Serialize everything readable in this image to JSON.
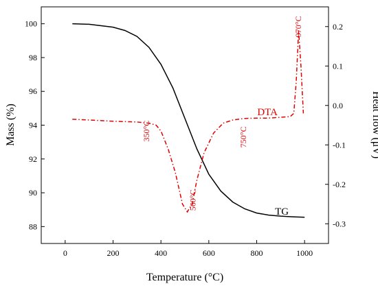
{
  "chart_data": {
    "type": "line",
    "xlabel": "Temperature (°C)",
    "ylabel_left": "Mass (%)",
    "ylabel_right": "Heat flow (μV)",
    "xlim": [
      -100,
      1100
    ],
    "ylim_left": [
      87,
      101
    ],
    "ylim_right": [
      -0.35,
      0.25
    ],
    "x_ticks": [
      0,
      200,
      400,
      600,
      800,
      1000
    ],
    "y_left_ticks": [
      88,
      90,
      92,
      94,
      96,
      98,
      100
    ],
    "y_right_ticks": [
      -0.3,
      -0.2,
      -0.1,
      0.0,
      0.1,
      0.2
    ],
    "y_right_tick_labels": [
      "-0.3",
      "-0.2",
      "-0.1",
      "0.0",
      "0.1",
      "0.2"
    ],
    "grid": false,
    "series": [
      {
        "name": "TG",
        "axis": "left",
        "color": "#000000",
        "style": "solid",
        "x": [
          30,
          100,
          200,
          250,
          300,
          350,
          400,
          450,
          500,
          550,
          600,
          650,
          700,
          750,
          800,
          850,
          900,
          950,
          1000
        ],
        "y": [
          100.0,
          99.97,
          99.8,
          99.6,
          99.25,
          98.6,
          97.6,
          96.2,
          94.4,
          92.6,
          91.1,
          90.1,
          89.45,
          89.05,
          88.8,
          88.68,
          88.62,
          88.58,
          88.55
        ]
      },
      {
        "name": "DTA",
        "axis": "right",
        "color": "#e00000",
        "style": "dashdot",
        "x": [
          30,
          100,
          200,
          300,
          350,
          380,
          400,
          430,
          460,
          490,
          510,
          530,
          550,
          580,
          620,
          660,
          700,
          750,
          800,
          850,
          900,
          940,
          955,
          965,
          975,
          985,
          995
        ],
        "y": [
          -0.035,
          -0.037,
          -0.04,
          -0.042,
          -0.045,
          -0.05,
          -0.065,
          -0.11,
          -0.17,
          -0.25,
          -0.27,
          -0.25,
          -0.19,
          -0.12,
          -0.07,
          -0.045,
          -0.037,
          -0.033,
          -0.032,
          -0.032,
          -0.03,
          -0.028,
          -0.02,
          0.06,
          0.19,
          0.1,
          -0.02
        ]
      }
    ],
    "annotations": [
      {
        "text": "350°C",
        "x": 350,
        "y": -0.065,
        "axis": "right",
        "rotate": -90
      },
      {
        "text": "560°C",
        "x": 545,
        "y": -0.24,
        "axis": "right",
        "rotate": -90
      },
      {
        "text": "750°C",
        "x": 755,
        "y": -0.08,
        "axis": "right",
        "rotate": -90
      },
      {
        "text": "970°C",
        "x": 985,
        "y": 0.2,
        "axis": "right",
        "rotate": -90
      }
    ],
    "series_labels": [
      {
        "text": "DTA",
        "series": "DTA",
        "x": 845,
        "y": -0.025
      },
      {
        "text": "TG",
        "series": "TG",
        "x": 905,
        "y": 88.7
      }
    ]
  }
}
